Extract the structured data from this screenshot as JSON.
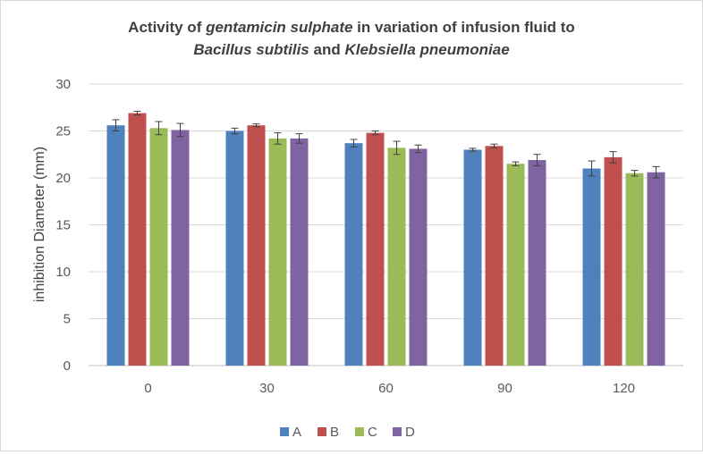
{
  "chart_data": {
    "type": "bar",
    "title": {
      "line1": [
        {
          "text": "Activity of ",
          "italic": false
        },
        {
          "text": "gentamicin sulphate",
          "italic": true
        },
        {
          "text": " in variation of infusion fluid to",
          "italic": false
        }
      ],
      "line2": [
        {
          "text": "Bacillus subtilis",
          "italic": true
        },
        {
          "text": " and ",
          "italic": false
        },
        {
          "text": "Klebsiella pneumoniae",
          "italic": true
        }
      ]
    },
    "xlabel": "",
    "ylabel": "inhibition Diameter (mm)",
    "categories": [
      "0",
      "30",
      "60",
      "90",
      "120"
    ],
    "ylim": [
      0,
      30
    ],
    "yticks": [
      0,
      5,
      10,
      15,
      20,
      25,
      30
    ],
    "grid": true,
    "legend_position": "bottom",
    "series": [
      {
        "name": "A",
        "color": "#4f81bd",
        "values": [
          25.6,
          25.0,
          23.7,
          23.0,
          21.0
        ],
        "errors": [
          0.6,
          0.3,
          0.4,
          0.15,
          0.8
        ]
      },
      {
        "name": "B",
        "color": "#c0504d",
        "values": [
          26.9,
          25.6,
          24.8,
          23.4,
          22.2
        ],
        "errors": [
          0.2,
          0.15,
          0.2,
          0.2,
          0.6
        ]
      },
      {
        "name": "C",
        "color": "#9bbb59",
        "values": [
          25.3,
          24.2,
          23.2,
          21.5,
          20.5
        ],
        "errors": [
          0.7,
          0.6,
          0.7,
          0.2,
          0.3
        ]
      },
      {
        "name": "D",
        "color": "#8064a2",
        "values": [
          25.1,
          24.2,
          23.1,
          21.9,
          20.6
        ],
        "errors": [
          0.7,
          0.5,
          0.4,
          0.6,
          0.6
        ]
      }
    ]
  }
}
